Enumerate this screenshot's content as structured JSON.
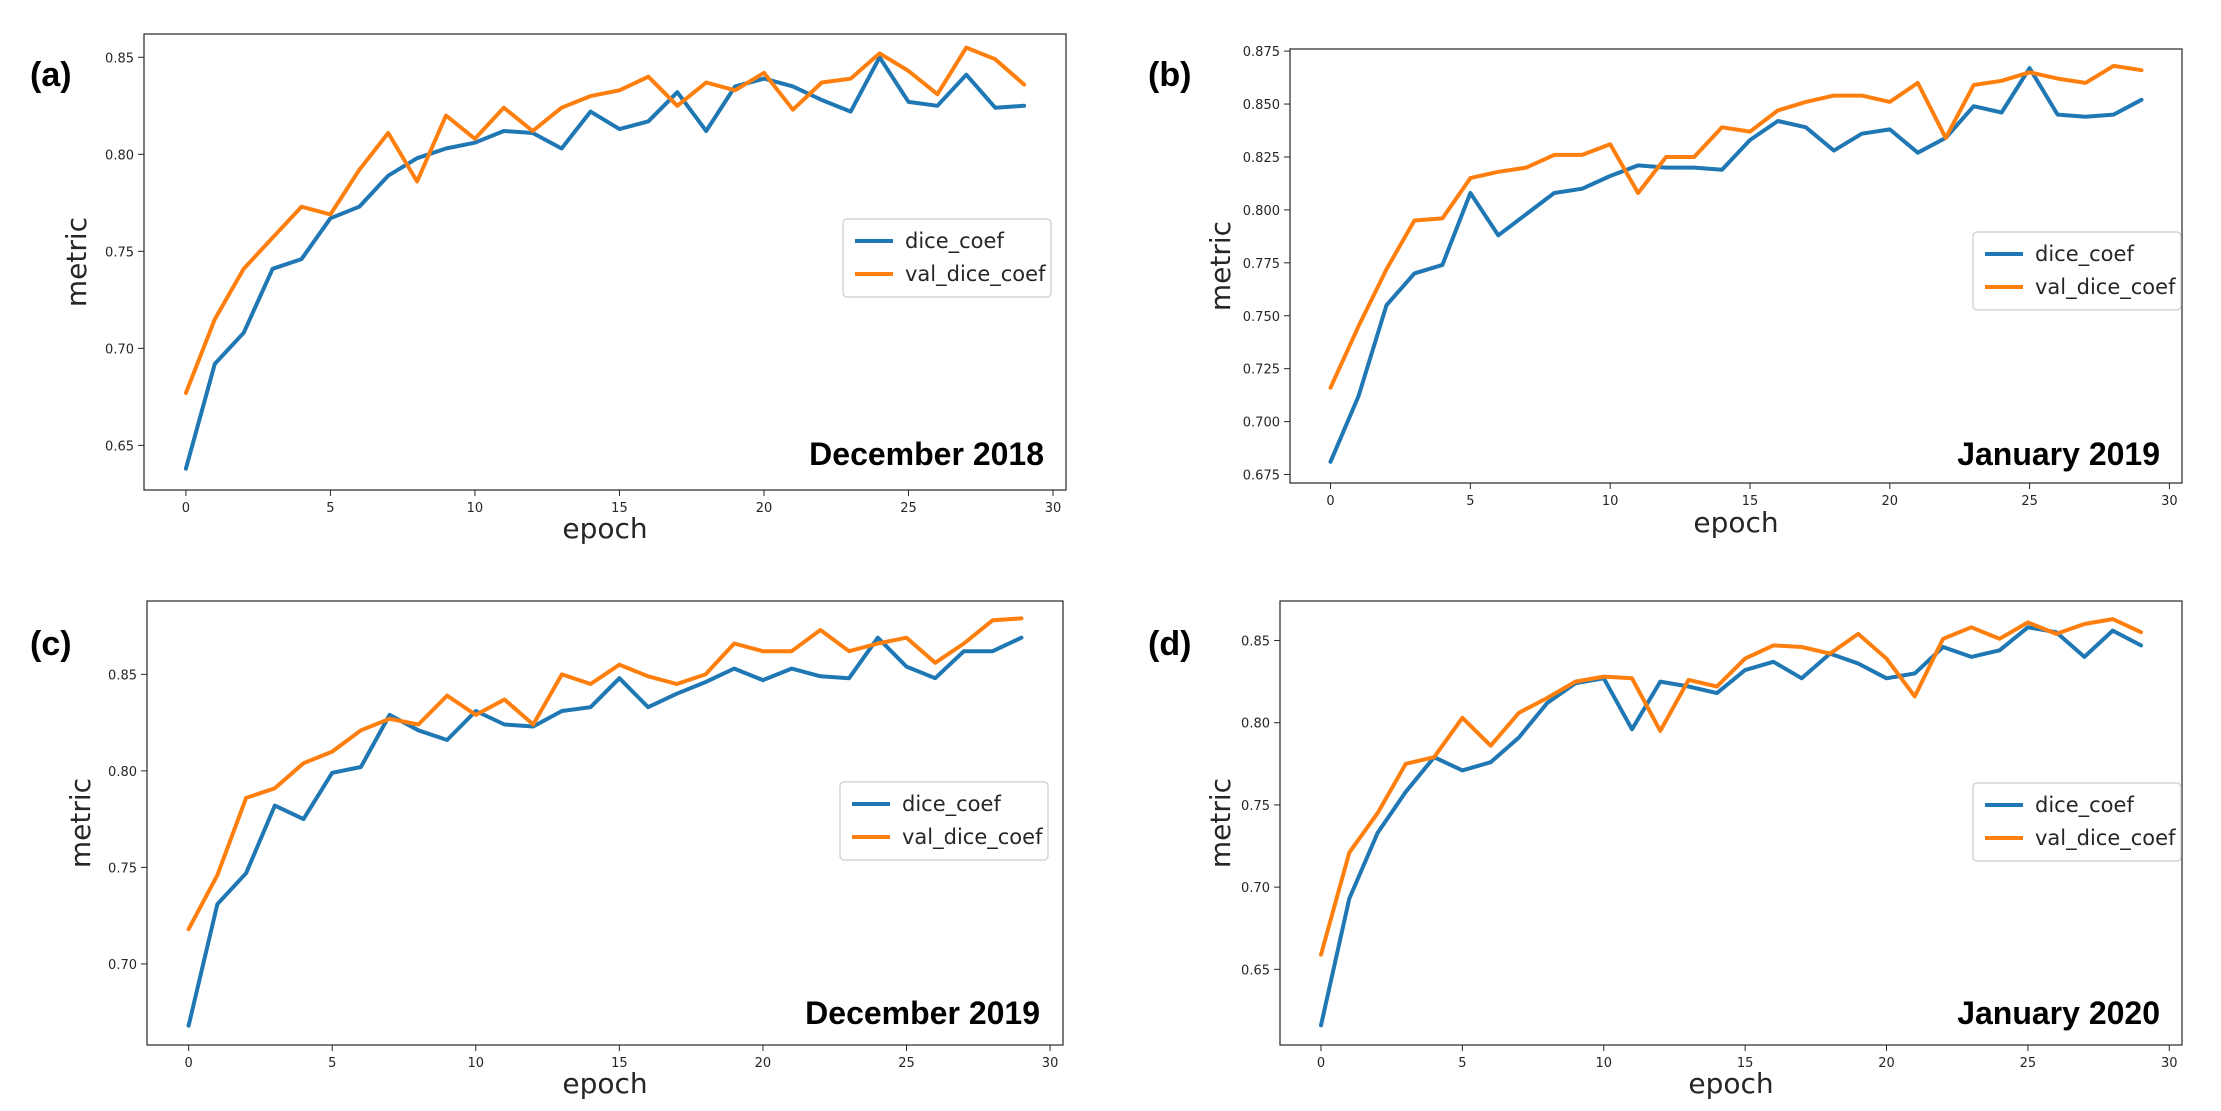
{
  "colors": {
    "dice_coef": "#1f77b4",
    "val_dice_coef": "#ff7f0e"
  },
  "chart_data": [
    {
      "type": "line",
      "panel": "(a)",
      "annotation": "December 2018",
      "xlabel": "epoch",
      "ylabel": "metric",
      "xlim": [
        -1.45,
        30.45
      ],
      "ylim": [
        0.627,
        0.862
      ],
      "xticks": [
        0,
        5,
        10,
        15,
        20,
        25,
        30
      ],
      "yticks": [
        0.65,
        0.7,
        0.75,
        0.8,
        0.85
      ],
      "ytick_labels": [
        "0.65",
        "0.70",
        "0.75",
        "0.80",
        "0.85"
      ],
      "legend_loc": "center right",
      "x": [
        0,
        1,
        2,
        3,
        4,
        5,
        6,
        7,
        8,
        9,
        10,
        11,
        12,
        13,
        14,
        15,
        16,
        17,
        18,
        19,
        20,
        21,
        22,
        23,
        24,
        25,
        26,
        27,
        28,
        29
      ],
      "series": [
        {
          "name": "dice_coef",
          "values": [
            0.638,
            0.692,
            0.708,
            0.741,
            0.746,
            0.767,
            0.773,
            0.789,
            0.798,
            0.803,
            0.806,
            0.812,
            0.811,
            0.803,
            0.822,
            0.813,
            0.817,
            0.832,
            0.812,
            0.835,
            0.839,
            0.835,
            0.828,
            0.822,
            0.85,
            0.827,
            0.825,
            0.841,
            0.824,
            0.825
          ]
        },
        {
          "name": "val_dice_coef",
          "values": [
            0.677,
            0.715,
            0.741,
            0.757,
            0.773,
            0.769,
            0.792,
            0.811,
            0.786,
            0.82,
            0.808,
            0.824,
            0.812,
            0.824,
            0.83,
            0.833,
            0.84,
            0.825,
            0.837,
            0.833,
            0.842,
            0.823,
            0.837,
            0.839,
            0.852,
            0.843,
            0.831,
            0.855,
            0.849,
            0.836
          ]
        }
      ]
    },
    {
      "type": "line",
      "panel": "(b)",
      "annotation": "January 2019",
      "xlabel": "epoch",
      "ylabel": "metric",
      "xlim": [
        -1.45,
        30.45
      ],
      "ylim": [
        0.671,
        0.876
      ],
      "xticks": [
        0,
        5,
        10,
        15,
        20,
        25,
        30
      ],
      "yticks": [
        0.675,
        0.7,
        0.725,
        0.75,
        0.775,
        0.8,
        0.825,
        0.85,
        0.875
      ],
      "ytick_labels": [
        "0.675",
        "0.700",
        "0.725",
        "0.750",
        "0.775",
        "0.800",
        "0.825",
        "0.850",
        "0.875"
      ],
      "legend_loc": "center right",
      "x": [
        0,
        1,
        2,
        3,
        4,
        5,
        6,
        7,
        8,
        9,
        10,
        11,
        12,
        13,
        14,
        15,
        16,
        17,
        18,
        19,
        20,
        21,
        22,
        23,
        24,
        25,
        26,
        27,
        28,
        29
      ],
      "series": [
        {
          "name": "dice_coef",
          "values": [
            0.681,
            0.712,
            0.755,
            0.77,
            0.774,
            0.808,
            0.788,
            0.798,
            0.808,
            0.81,
            0.816,
            0.821,
            0.82,
            0.82,
            0.819,
            0.833,
            0.842,
            0.839,
            0.828,
            0.836,
            0.838,
            0.827,
            0.834,
            0.849,
            0.846,
            0.867,
            0.845,
            0.844,
            0.845,
            0.852
          ]
        },
        {
          "name": "val_dice_coef",
          "values": [
            0.716,
            0.745,
            0.772,
            0.795,
            0.796,
            0.815,
            0.818,
            0.82,
            0.826,
            0.826,
            0.831,
            0.808,
            0.825,
            0.825,
            0.839,
            0.837,
            0.847,
            0.851,
            0.854,
            0.854,
            0.851,
            0.86,
            0.834,
            0.859,
            0.861,
            0.865,
            0.862,
            0.86,
            0.868,
            0.866
          ]
        }
      ]
    },
    {
      "type": "line",
      "panel": "(c)",
      "annotation": "December 2019",
      "xlabel": "epoch",
      "ylabel": "metric",
      "xlim": [
        -1.45,
        30.45
      ],
      "ylim": [
        0.658,
        0.888
      ],
      "xticks": [
        0,
        5,
        10,
        15,
        20,
        25,
        30
      ],
      "yticks": [
        0.7,
        0.75,
        0.8,
        0.85
      ],
      "ytick_labels": [
        "0.70",
        "0.75",
        "0.80",
        "0.85"
      ],
      "legend_loc": "center right",
      "x": [
        0,
        1,
        2,
        3,
        4,
        5,
        6,
        7,
        8,
        9,
        10,
        11,
        12,
        13,
        14,
        15,
        16,
        17,
        18,
        19,
        20,
        21,
        22,
        23,
        24,
        25,
        26,
        27,
        28,
        29
      ],
      "series": [
        {
          "name": "dice_coef",
          "values": [
            0.668,
            0.731,
            0.747,
            0.782,
            0.775,
            0.799,
            0.802,
            0.829,
            0.821,
            0.816,
            0.831,
            0.824,
            0.823,
            0.831,
            0.833,
            0.848,
            0.833,
            0.84,
            0.846,
            0.853,
            0.847,
            0.853,
            0.849,
            0.848,
            0.869,
            0.854,
            0.848,
            0.862,
            0.862,
            0.869
          ]
        },
        {
          "name": "val_dice_coef",
          "values": [
            0.718,
            0.746,
            0.786,
            0.791,
            0.804,
            0.81,
            0.821,
            0.827,
            0.824,
            0.839,
            0.829,
            0.837,
            0.824,
            0.85,
            0.845,
            0.855,
            0.849,
            0.845,
            0.85,
            0.866,
            0.862,
            0.862,
            0.873,
            0.862,
            0.866,
            0.869,
            0.856,
            0.866,
            0.878,
            0.879
          ]
        }
      ]
    },
    {
      "type": "line",
      "panel": "(d)",
      "annotation": "January 2020",
      "xlabel": "epoch",
      "ylabel": "metric",
      "xlim": [
        -1.45,
        30.45
      ],
      "ylim": [
        0.604,
        0.874
      ],
      "xticks": [
        0,
        5,
        10,
        15,
        20,
        25,
        30
      ],
      "yticks": [
        0.65,
        0.7,
        0.75,
        0.8,
        0.85
      ],
      "ytick_labels": [
        "0.65",
        "0.70",
        "0.75",
        "0.80",
        "0.85"
      ],
      "legend_loc": "center right",
      "x": [
        0,
        1,
        2,
        3,
        4,
        5,
        6,
        7,
        8,
        9,
        10,
        11,
        12,
        13,
        14,
        15,
        16,
        17,
        18,
        19,
        20,
        21,
        22,
        23,
        24,
        25,
        26,
        27,
        28,
        29
      ],
      "series": [
        {
          "name": "dice_coef",
          "values": [
            0.616,
            0.693,
            0.733,
            0.758,
            0.779,
            0.771,
            0.776,
            0.791,
            0.812,
            0.824,
            0.827,
            0.796,
            0.825,
            0.822,
            0.818,
            0.832,
            0.837,
            0.827,
            0.842,
            0.836,
            0.827,
            0.83,
            0.846,
            0.84,
            0.844,
            0.858,
            0.855,
            0.84,
            0.856,
            0.847
          ]
        },
        {
          "name": "val_dice_coef",
          "values": [
            0.659,
            0.721,
            0.745,
            0.775,
            0.779,
            0.803,
            0.786,
            0.806,
            0.815,
            0.825,
            0.828,
            0.827,
            0.795,
            0.826,
            0.822,
            0.839,
            0.847,
            0.846,
            0.842,
            0.854,
            0.839,
            0.816,
            0.851,
            0.858,
            0.851,
            0.861,
            0.854,
            0.86,
            0.863,
            0.855
          ]
        }
      ]
    }
  ]
}
